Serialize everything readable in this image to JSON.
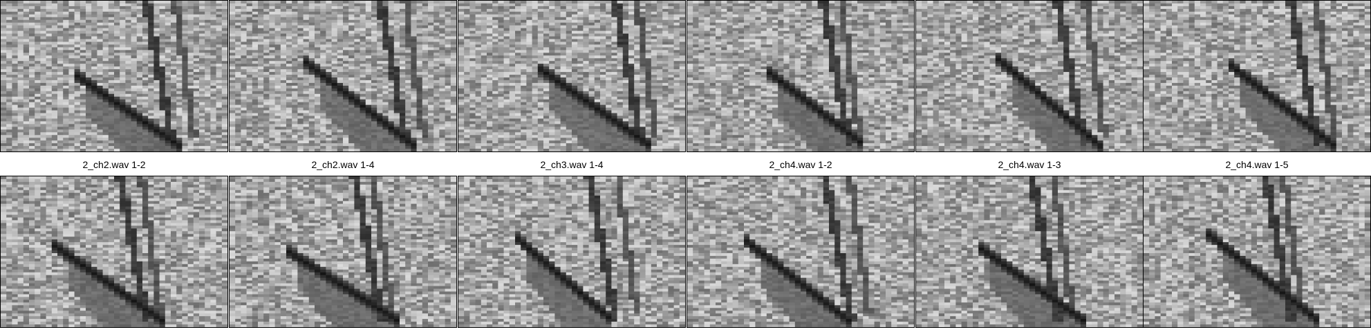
{
  "tiles": {
    "top_row": [
      {
        "label": ""
      },
      {
        "label": ""
      },
      {
        "label": ""
      },
      {
        "label": ""
      },
      {
        "label": ""
      },
      {
        "label": ""
      }
    ],
    "bottom_row": [
      {
        "label": "2_ch2.wav 1-2"
      },
      {
        "label": "2_ch2.wav 1-4"
      },
      {
        "label": "2_ch3.wav 1-4"
      },
      {
        "label": "2_ch4.wav 1-2"
      },
      {
        "label": "2_ch4.wav 1-3"
      },
      {
        "label": "2_ch4.wav 1-5"
      }
    ]
  },
  "colors": {
    "background_noise": "#9a9a9a",
    "dark_streak": "#000000",
    "border": "#000000",
    "label_text": "#000000"
  }
}
